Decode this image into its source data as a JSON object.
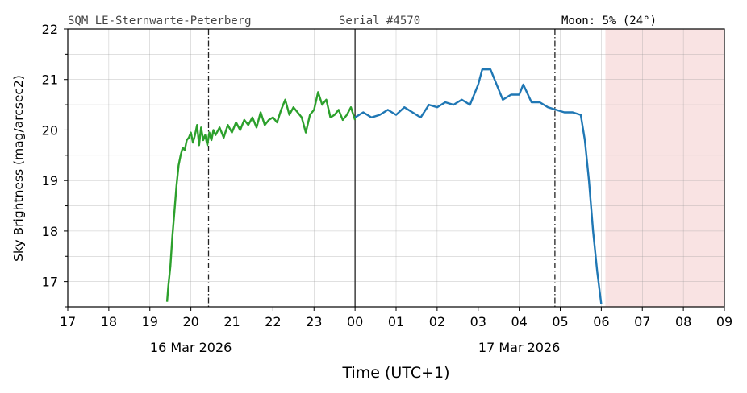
{
  "header": {
    "station": "SQM_LE-Sternwarte-Peterberg",
    "serial": "Serial #4570",
    "moon": "Moon: 5% (24°)"
  },
  "chart_data": {
    "type": "line",
    "title": "",
    "xlabel": "Time (UTC+1)",
    "ylabel": "Sky Brightness (mag/arcsec2)",
    "x_unit": "hours from 16 Mar 2026 00:00 (UTC+1)",
    "xlim": [
      17,
      33
    ],
    "ylim": [
      16.5,
      22
    ],
    "x_ticks": [
      17,
      18,
      19,
      20,
      21,
      22,
      23,
      24,
      25,
      26,
      27,
      28,
      29,
      30,
      31,
      32,
      33
    ],
    "x_tick_labels": [
      "17",
      "18",
      "19",
      "20",
      "21",
      "22",
      "23",
      "00",
      "01",
      "02",
      "03",
      "04",
      "05",
      "06",
      "07",
      "08",
      "09"
    ],
    "y_ticks": [
      17,
      18,
      19,
      20,
      21,
      22
    ],
    "y_tick_labels": [
      "17",
      "18",
      "19",
      "20",
      "21",
      "22"
    ],
    "date_labels": [
      {
        "x": 20,
        "text": "16 Mar 2026"
      },
      {
        "x": 28,
        "text": "17 Mar 2026"
      }
    ],
    "grid": true,
    "vlines": [
      {
        "x": 20.43,
        "style": "dashdot"
      },
      {
        "x": 24.0,
        "style": "solid"
      },
      {
        "x": 28.87,
        "style": "dashdot"
      }
    ],
    "shaded_region": {
      "x_start": 30.1,
      "x_end": 33,
      "color": "#f9e3e3"
    },
    "series": [
      {
        "color": "#2ca02c",
        "x": [
          19.42,
          19.45,
          19.5,
          19.55,
          19.6,
          19.65,
          19.7,
          19.75,
          19.8,
          19.85,
          19.9,
          19.95,
          20.0,
          20.05,
          20.1,
          20.15,
          20.2,
          20.25,
          20.3,
          20.35,
          20.4,
          20.45,
          20.5,
          20.55,
          20.6,
          20.7,
          20.8,
          20.9,
          21.0,
          21.1,
          21.2,
          21.3,
          21.4,
          21.5,
          21.6,
          21.7,
          21.8,
          21.9,
          22.0,
          22.1,
          22.2,
          22.3,
          22.4,
          22.5,
          22.6,
          22.7,
          22.8,
          22.9,
          23.0,
          23.1,
          23.2,
          23.3,
          23.4,
          23.5,
          23.6,
          23.7,
          23.8,
          23.9,
          24.0
        ],
        "values": [
          16.6,
          16.9,
          17.3,
          17.9,
          18.4,
          18.9,
          19.3,
          19.5,
          19.65,
          19.6,
          19.8,
          19.85,
          19.95,
          19.75,
          19.9,
          20.1,
          19.7,
          20.05,
          19.8,
          19.9,
          19.7,
          19.95,
          19.8,
          20.0,
          19.9,
          20.05,
          19.85,
          20.1,
          19.95,
          20.15,
          20.0,
          20.2,
          20.1,
          20.25,
          20.05,
          20.35,
          20.1,
          20.2,
          20.25,
          20.15,
          20.4,
          20.6,
          20.3,
          20.45,
          20.35,
          20.25,
          19.95,
          20.3,
          20.4,
          20.75,
          20.5,
          20.6,
          20.25,
          20.3,
          20.4,
          20.2,
          20.3,
          20.45,
          20.2
        ]
      },
      {
        "color": "#1f77b4",
        "x": [
          24.0,
          24.2,
          24.4,
          24.6,
          24.8,
          25.0,
          25.2,
          25.4,
          25.6,
          25.8,
          26.0,
          26.2,
          26.4,
          26.6,
          26.8,
          27.0,
          27.1,
          27.2,
          27.3,
          27.5,
          27.6,
          27.8,
          28.0,
          28.1,
          28.3,
          28.5,
          28.7,
          28.9,
          29.1,
          29.3,
          29.5,
          29.6,
          29.7,
          29.8,
          29.9,
          30.0
        ],
        "values": [
          20.25,
          20.35,
          20.25,
          20.3,
          20.4,
          20.3,
          20.45,
          20.35,
          20.25,
          20.5,
          20.45,
          20.55,
          20.5,
          20.6,
          20.5,
          20.9,
          21.2,
          21.2,
          21.2,
          20.8,
          20.6,
          20.7,
          20.7,
          20.9,
          20.55,
          20.55,
          20.45,
          20.4,
          20.35,
          20.35,
          20.3,
          19.8,
          19.0,
          18.0,
          17.2,
          16.55
        ]
      }
    ]
  }
}
